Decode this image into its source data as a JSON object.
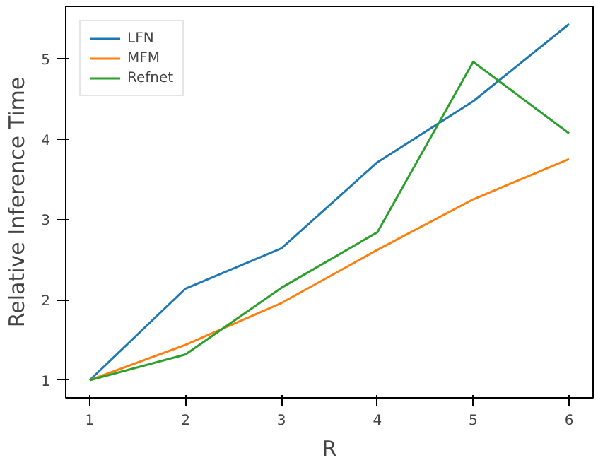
{
  "chart_data": {
    "type": "line",
    "xlabel": "R",
    "ylabel": "Relative Inference Time",
    "x": [
      1,
      2,
      3,
      4,
      5,
      6
    ],
    "series": [
      {
        "name": "LFN",
        "color": "#1f77b4",
        "values": [
          1.0,
          2.14,
          2.64,
          3.71,
          4.47,
          5.43
        ]
      },
      {
        "name": "MFM",
        "color": "#ff7f0e",
        "values": [
          1.0,
          1.44,
          1.96,
          2.62,
          3.25,
          3.75
        ]
      },
      {
        "name": "Refnet",
        "color": "#2ca02c",
        "values": [
          1.0,
          1.32,
          2.15,
          2.84,
          4.96,
          4.07
        ]
      }
    ],
    "xlim": [
      0.75,
      6.25
    ],
    "ylim": [
      0.78,
      5.65
    ],
    "xticks": [
      1,
      2,
      3,
      4,
      5,
      6
    ],
    "yticks": [
      1,
      2,
      3,
      4,
      5
    ],
    "grid": false,
    "legend": "top left",
    "marker": "none",
    "line_style": "solid"
  }
}
